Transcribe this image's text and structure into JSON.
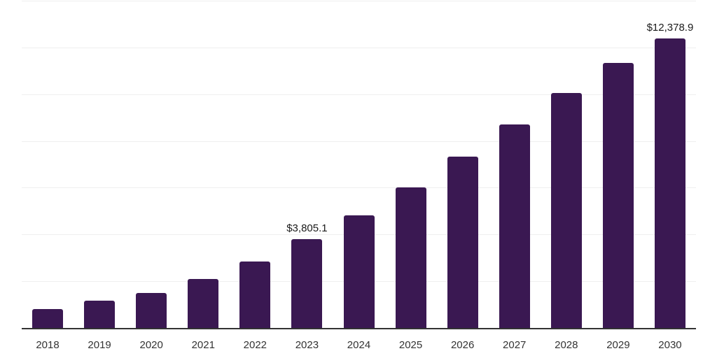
{
  "chart_data": {
    "type": "bar",
    "title": "",
    "xlabel": "",
    "ylabel": "",
    "categories": [
      "2018",
      "2019",
      "2020",
      "2021",
      "2022",
      "2023",
      "2024",
      "2025",
      "2026",
      "2027",
      "2028",
      "2029",
      "2030"
    ],
    "values": [
      820,
      1180,
      1510,
      2080,
      2840,
      3805.1,
      4830,
      6020,
      7340,
      8700,
      10060,
      11350,
      12378.9
    ],
    "data_labels": {
      "2023": "$3,805.1",
      "2030": "$12,378.9"
    },
    "ylim": [
      0,
      14000
    ],
    "gridline_step": 2000,
    "grid": "horizontal-only",
    "legend": "none",
    "colors": {
      "bar": "#3A1852",
      "axis_line": "#333333",
      "gridline": "#EFEFEF",
      "tick_label": "#333333",
      "data_label": "#1A1A1A"
    }
  }
}
